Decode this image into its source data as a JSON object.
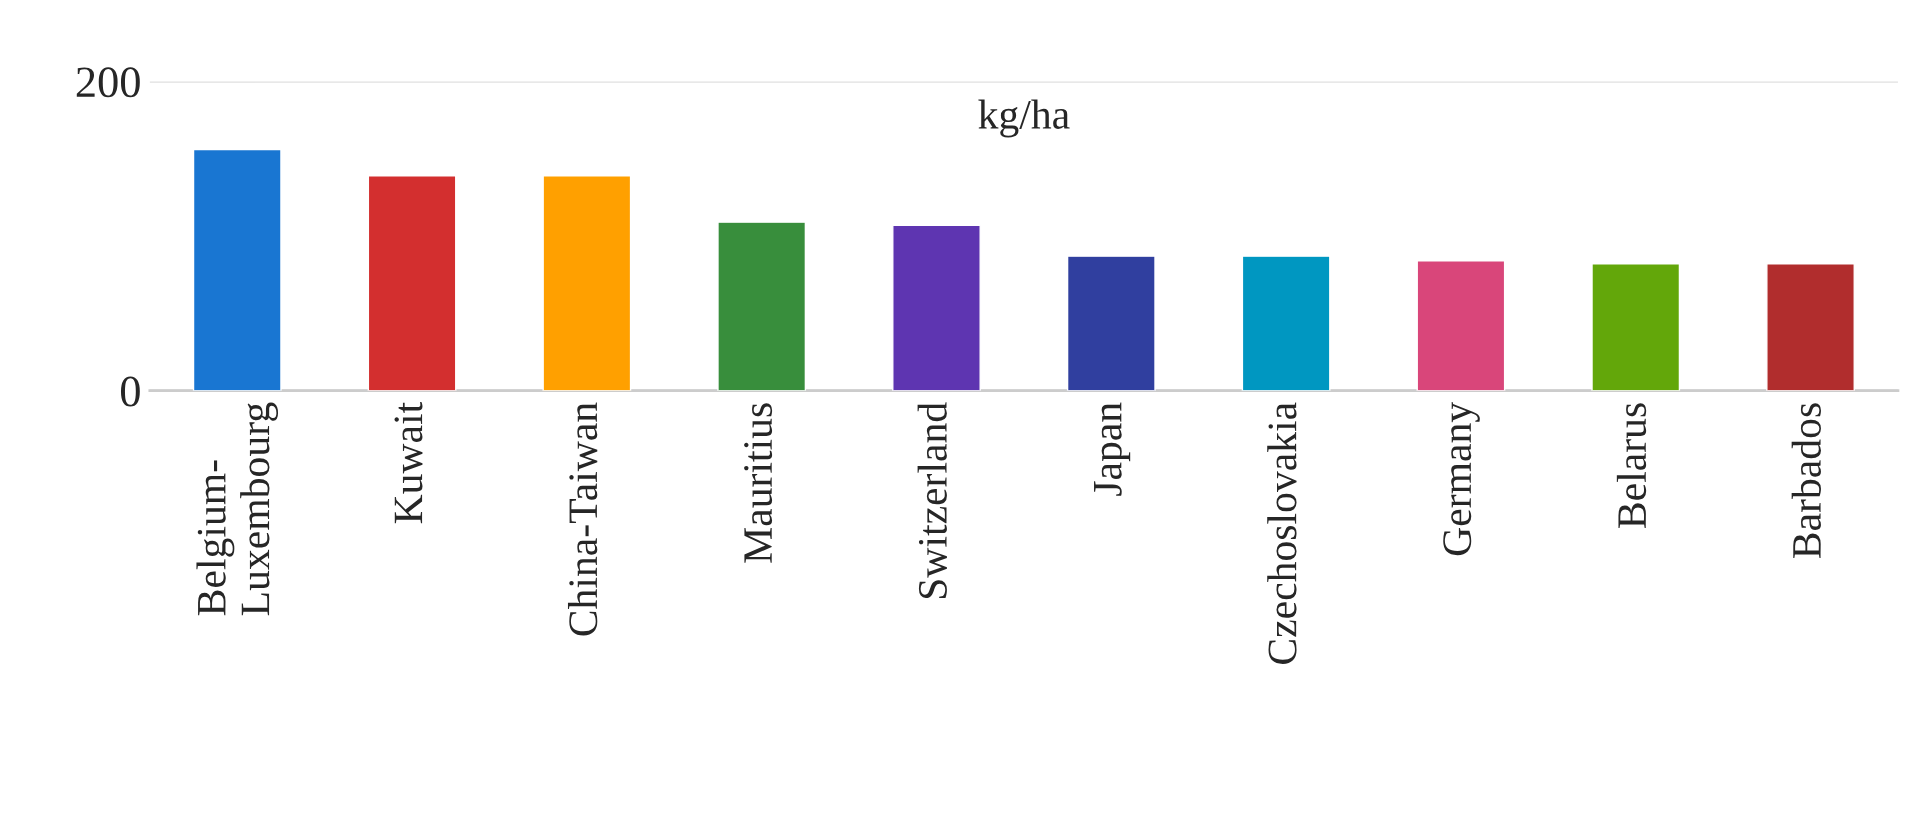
{
  "chart_data": {
    "type": "bar",
    "categories": [
      "Belgium-\nLuxembourg",
      "Kuwait",
      "China-Taiwan",
      "Mauritius",
      "Switzerland",
      "Japan",
      "Czechoslovakia",
      "Germany",
      "Belarus",
      "Barbados"
    ],
    "values": [
      156,
      139,
      139,
      109,
      107,
      87,
      87,
      84,
      82,
      82
    ],
    "colors": [
      "#1976d2",
      "#d32f2f",
      "#ffa000",
      "#388e3c",
      "#5e35b1",
      "#303f9f",
      "#0097c1",
      "#d9467a",
      "#63a70a",
      "#b12d2d"
    ],
    "ylim": [
      0,
      200
    ],
    "yticks": [
      0,
      200
    ],
    "grid": "y",
    "annotations": [
      "kg/ha"
    ]
  }
}
